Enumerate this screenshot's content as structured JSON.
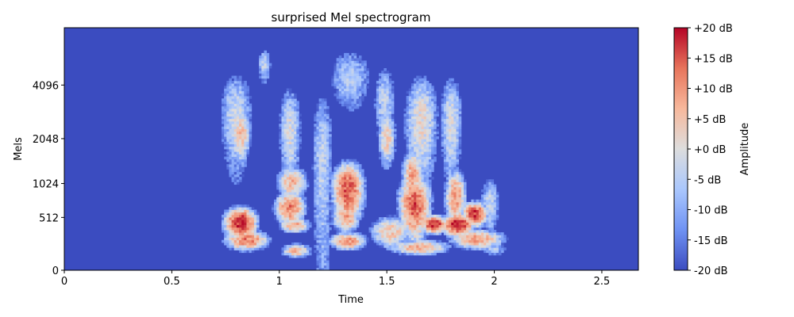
{
  "chart_data": {
    "type": "heatmap",
    "title": "surprised Mel spectrogram",
    "xlabel": "Time",
    "ylabel": "Mels",
    "x_ticks": [
      0,
      0.5,
      1,
      1.5,
      2,
      2.5
    ],
    "x_tick_labels": [
      "0",
      "0.5",
      "1",
      "1.5",
      "2",
      "2.5"
    ],
    "xlim": [
      0,
      2.67
    ],
    "y_ticks": [
      0,
      512,
      1024,
      2048,
      4096
    ],
    "y_tick_labels": [
      "0",
      "512",
      "1024",
      "2048",
      "4096"
    ],
    "y_scale": "mel",
    "colorbar": {
      "label": "Amplitude",
      "range": [
        -20,
        20
      ],
      "ticks": [
        20,
        15,
        10,
        5,
        0,
        -5,
        -10,
        -15,
        -20
      ],
      "tick_labels": [
        "+20 dB",
        "+15 dB",
        "+10 dB",
        "+5 dB",
        "+0 dB",
        "-5 dB",
        "-10 dB",
        "-15 dB",
        "-20 dB"
      ],
      "colormap": "coolwarm",
      "colors": [
        "#3b4cc0",
        "#6f92f3",
        "#aac7fd",
        "#dddddd",
        "#f7b89c",
        "#e7745b",
        "#b40426"
      ]
    },
    "blobs": [
      {
        "t": 0.82,
        "mel": 450,
        "dt": 0.05,
        "dm": 130,
        "db": 19
      },
      {
        "t": 0.85,
        "mel": 260,
        "dt": 0.07,
        "dm": 70,
        "db": 12
      },
      {
        "t": 0.82,
        "mel": 2200,
        "dt": 0.035,
        "dm": 600,
        "db": 6
      },
      {
        "t": 0.8,
        "mel": 2800,
        "dt": 0.06,
        "dm": 1500,
        "db": -2
      },
      {
        "t": 0.93,
        "mel": 5200,
        "dt": 0.025,
        "dm": 900,
        "db": -4
      },
      {
        "t": 1.05,
        "mel": 650,
        "dt": 0.05,
        "dm": 170,
        "db": 12
      },
      {
        "t": 1.07,
        "mel": 420,
        "dt": 0.05,
        "dm": 60,
        "db": 9
      },
      {
        "t": 1.06,
        "mel": 1050,
        "dt": 0.05,
        "dm": 220,
        "db": 7
      },
      {
        "t": 1.05,
        "mel": 2300,
        "dt": 0.04,
        "dm": 1300,
        "db": -1
      },
      {
        "t": 1.08,
        "mel": 160,
        "dt": 0.05,
        "dm": 45,
        "db": 6
      },
      {
        "t": 1.2,
        "mel": 1500,
        "dt": 0.04,
        "dm": 1800,
        "db": -4
      },
      {
        "t": 1.32,
        "mel": 920,
        "dt": 0.05,
        "dm": 360,
        "db": 15
      },
      {
        "t": 1.31,
        "mel": 520,
        "dt": 0.045,
        "dm": 130,
        "db": 9
      },
      {
        "t": 1.32,
        "mel": 250,
        "dt": 0.06,
        "dm": 60,
        "db": 10
      },
      {
        "t": 1.33,
        "mel": 4500,
        "dt": 0.08,
        "dm": 1400,
        "db": -5
      },
      {
        "t": 1.5,
        "mel": 2100,
        "dt": 0.03,
        "dm": 600,
        "db": 4
      },
      {
        "t": 1.52,
        "mel": 350,
        "dt": 0.07,
        "dm": 130,
        "db": 5
      },
      {
        "t": 1.49,
        "mel": 3300,
        "dt": 0.04,
        "dm": 1500,
        "db": -4
      },
      {
        "t": 1.63,
        "mel": 700,
        "dt": 0.05,
        "dm": 320,
        "db": 15
      },
      {
        "t": 1.62,
        "mel": 1200,
        "dt": 0.035,
        "dm": 350,
        "db": 9
      },
      {
        "t": 1.66,
        "mel": 2600,
        "dt": 0.06,
        "dm": 1500,
        "db": 1
      },
      {
        "t": 1.72,
        "mel": 430,
        "dt": 0.04,
        "dm": 70,
        "db": 19
      },
      {
        "t": 1.65,
        "mel": 190,
        "dt": 0.1,
        "dm": 50,
        "db": 8
      },
      {
        "t": 1.83,
        "mel": 430,
        "dt": 0.05,
        "dm": 90,
        "db": 19
      },
      {
        "t": 1.91,
        "mel": 560,
        "dt": 0.04,
        "dm": 110,
        "db": 17
      },
      {
        "t": 1.82,
        "mel": 800,
        "dt": 0.035,
        "dm": 350,
        "db": 9
      },
      {
        "t": 1.8,
        "mel": 2600,
        "dt": 0.04,
        "dm": 1500,
        "db": -1
      },
      {
        "t": 1.92,
        "mel": 270,
        "dt": 0.09,
        "dm": 70,
        "db": 9
      },
      {
        "t": 1.98,
        "mel": 700,
        "dt": 0.035,
        "dm": 350,
        "db": -3
      },
      {
        "t": 2.0,
        "mel": 180,
        "dt": 0.05,
        "dm": 60,
        "db": -6
      }
    ]
  }
}
